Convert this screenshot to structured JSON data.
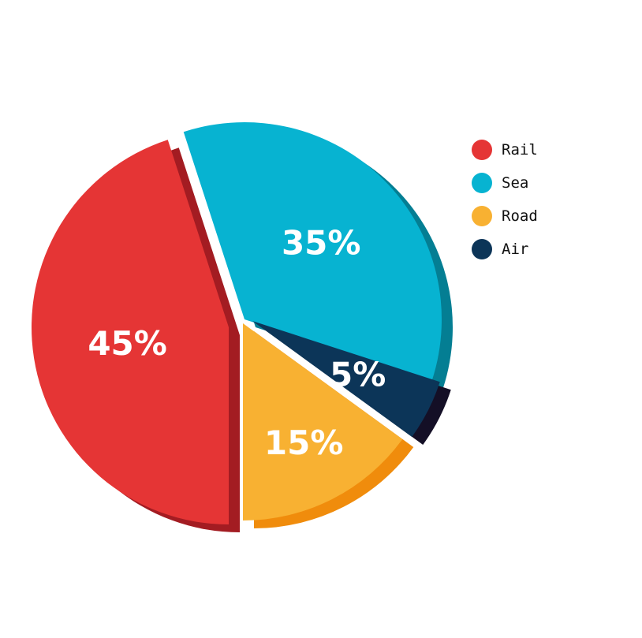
{
  "chart_data": {
    "type": "pie",
    "style": "3d-exploded",
    "categories": [
      "Rail",
      "Sea",
      "Road",
      "Air"
    ],
    "values": [
      45,
      35,
      15,
      5
    ],
    "labels": [
      "45%",
      "35%",
      "15%",
      "5%"
    ],
    "title": "",
    "legend_placement": "right",
    "colors": {
      "Rail": {
        "face": "#e53535",
        "side": "#a31c22"
      },
      "Sea": {
        "face": "#07b3d1",
        "side": "#047e93"
      },
      "Road": {
        "face": "#f8b132",
        "side": "#f08c0c"
      },
      "Air": {
        "face": "#0c3558",
        "side": "#140f26"
      }
    }
  },
  "legend": {
    "items": [
      {
        "label": "Rail",
        "color": "#e53535"
      },
      {
        "label": "Sea",
        "color": "#07b3d1"
      },
      {
        "label": "Road",
        "color": "#f8b132"
      },
      {
        "label": "Air",
        "color": "#0c3558"
      }
    ]
  }
}
